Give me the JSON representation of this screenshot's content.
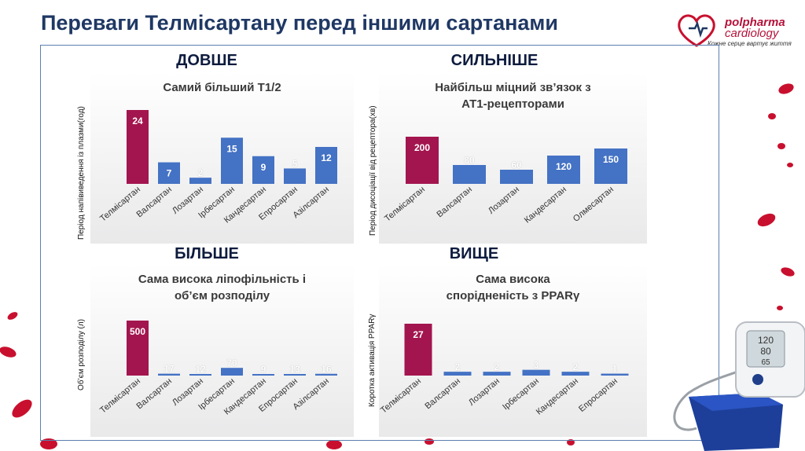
{
  "slide": {
    "title": "Переваги Телмісартану перед іншими сартанами",
    "logo": {
      "brand": "polpharma",
      "sub": "cardiology",
      "tagline": "Кожне серце вартує життя"
    },
    "headings": [
      "ДОВШЕ",
      "СИЛЬНІШЕ",
      "БІЛЬШЕ",
      "ВИЩЕ"
    ]
  },
  "colors": {
    "highlight": "#a3154e",
    "bar": "#4472c4",
    "title": "#1f3864",
    "frame": "#5b7fae"
  },
  "chart_data": [
    {
      "type": "bar",
      "title": "Самий більший Т1/2",
      "ylabel": "Період напівиведення із плазми(год)",
      "categories": [
        "Телмісартан",
        "Валсартан",
        "Лозартан",
        "Ірбесартан",
        "Кандесартан",
        "Епросартан",
        "Азілсартан"
      ],
      "values": [
        24,
        7,
        2,
        15,
        9,
        5,
        12
      ],
      "highlight_index": 0,
      "grid": false
    },
    {
      "type": "bar",
      "title": "Найбільш міцний зв’язок з АТ1-рецепторами",
      "ylabel": "Період дисоціації від рецептора(хв)",
      "categories": [
        "Телмісартан",
        "Валсартан",
        "Лозартан",
        "Кандесартан",
        "Олмесартан"
      ],
      "values": [
        200,
        80,
        60,
        120,
        150
      ],
      "highlight_index": 0,
      "grid": false
    },
    {
      "type": "bar",
      "title": "Сама висока ліпофільність і об’єм розподілу",
      "ylabel": "Об’єм розподілу (л)",
      "categories": [
        "Телмісартан",
        "Валсартан",
        "Лозартан",
        "Ірбесартан",
        "Кандесартан",
        "Епросартан",
        "Азілсартан"
      ],
      "values": [
        500,
        17,
        12,
        70,
        9,
        13,
        16
      ],
      "highlight_index": 0,
      "grid": false
    },
    {
      "type": "bar",
      "title": "Сама висока спорідненість з PPARγ",
      "ylabel": "Коротка активація PPARγ",
      "categories": [
        "Телмісартан",
        "Валсартан",
        "Лозартан",
        "Ірбесартан",
        "Кандесартан",
        "Епросартан"
      ],
      "values": [
        27,
        2,
        2,
        3,
        2,
        1
      ],
      "highlight_index": 0,
      "grid": false
    }
  ]
}
